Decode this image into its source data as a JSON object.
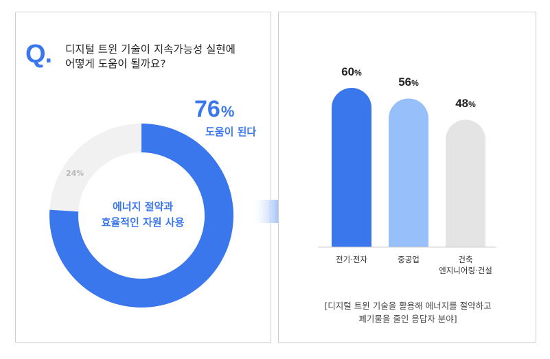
{
  "question": {
    "mark": "Q.",
    "line1": "디지털 트윈 기술이 지속가능성 실현에",
    "line2": "어떻게 도움이 될까요?"
  },
  "donut": {
    "main_value": "76",
    "main_unit": "%",
    "main_caption": "도움이 된다",
    "minor_label": "24%",
    "center_line1": "에너지 절약과",
    "center_line2": "효율적인 자원 사용",
    "colors": {
      "main": "#3a76ec",
      "rest": "#f1f1f1"
    }
  },
  "chart_data": [
    {
      "type": "pie",
      "labels": [
        "도움이 된다",
        ""
      ],
      "values": [
        76,
        24
      ],
      "colors": [
        "#3a76ec",
        "#f1f1f1"
      ]
    },
    {
      "type": "bar",
      "categories": [
        "전기·전자",
        "중공업",
        "건축 엔지니어링·건설"
      ],
      "values": [
        60,
        56,
        48
      ],
      "value_labels": [
        "60",
        "56",
        "48"
      ],
      "unit": "%",
      "colors": [
        "#3a76ec",
        "#97bffa",
        "#e4e4e4"
      ],
      "ylim": [
        0,
        60
      ]
    }
  ],
  "bars": {
    "categories": [
      {
        "lines": [
          "전기·전자"
        ]
      },
      {
        "lines": [
          "중공업"
        ]
      },
      {
        "lines": [
          "건축",
          "엔지니어링·건설"
        ]
      }
    ]
  },
  "note": {
    "line1": "[디지털 트윈 기술을 활용해 에너지를 절약하고",
    "line2": "폐기물을 줄인 응답자 분야]"
  }
}
